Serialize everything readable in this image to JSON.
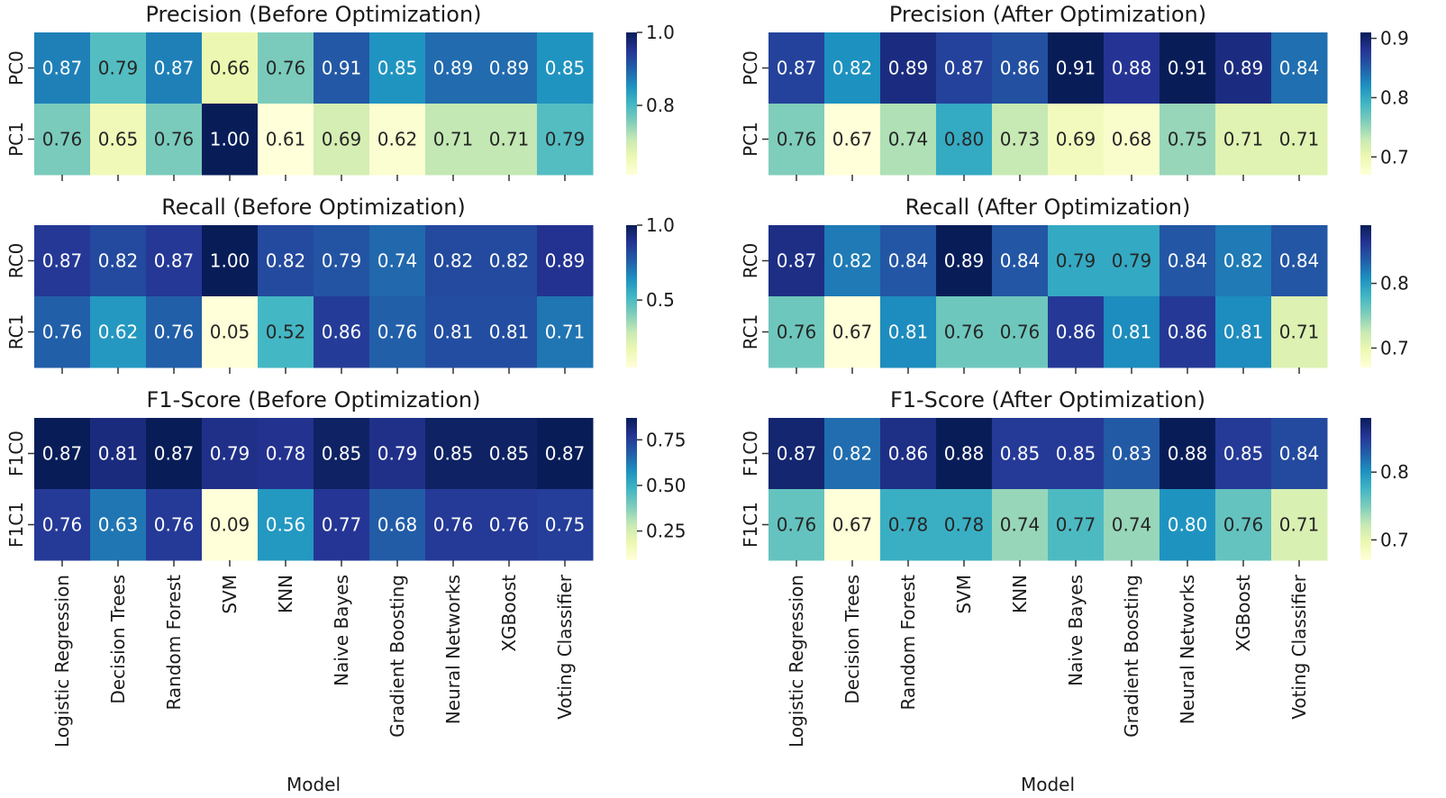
{
  "chart_data": [
    {
      "type": "heatmap",
      "title": "Precision (Before Optimization)",
      "rows": [
        "PC0",
        "PC1"
      ],
      "columns": [
        "Logistic Regression",
        "Decision Trees",
        "Random Forest",
        "SVM",
        "KNN",
        "Naive Bayes",
        "Gradient Boosting",
        "Neural Networks",
        "XGBoost",
        "Voting Classifier"
      ],
      "values": [
        [
          0.87,
          0.79,
          0.87,
          0.66,
          0.76,
          0.91,
          0.85,
          0.89,
          0.89,
          0.85
        ],
        [
          0.76,
          0.65,
          0.76,
          1.0,
          0.61,
          0.69,
          0.62,
          0.71,
          0.71,
          0.79
        ]
      ],
      "labels": [
        [
          "0.87",
          "0.79",
          "0.87",
          "0.66",
          "0.76",
          "0.91",
          "0.85",
          "0.89",
          "0.89",
          "0.85"
        ],
        [
          "0.76",
          "0.65",
          "0.76",
          "1.00",
          "0.61",
          "0.69",
          "0.62",
          "0.71",
          "0.71",
          "0.79"
        ]
      ],
      "vmin": 0.61,
      "vmax": 1.0,
      "colorbar_ticks": [
        0.8,
        1.0
      ],
      "colorbar_tick_labels": [
        "0.8",
        "1.0"
      ],
      "colormap": "YlGnBu",
      "xlabel": "",
      "show_xticklabels": false
    },
    {
      "type": "heatmap",
      "title": "Precision (After Optimization)",
      "rows": [
        "PC0",
        "PC1"
      ],
      "columns": [
        "Logistic Regression",
        "Decision Trees",
        "Random Forest",
        "SVM",
        "KNN",
        "Naive Bayes",
        "Gradient Boosting",
        "Neural Networks",
        "XGBoost",
        "Voting Classifier"
      ],
      "values": [
        [
          0.87,
          0.82,
          0.89,
          0.87,
          0.86,
          0.91,
          0.88,
          0.91,
          0.89,
          0.84
        ],
        [
          0.76,
          0.67,
          0.74,
          0.8,
          0.73,
          0.69,
          0.68,
          0.75,
          0.71,
          0.71
        ]
      ],
      "labels": [
        [
          "0.87",
          "0.82",
          "0.89",
          "0.87",
          "0.86",
          "0.91",
          "0.88",
          "0.91",
          "0.89",
          "0.84"
        ],
        [
          "0.76",
          "0.67",
          "0.74",
          "0.80",
          "0.73",
          "0.69",
          "0.68",
          "0.75",
          "0.71",
          "0.71"
        ]
      ],
      "vmin": 0.67,
      "vmax": 0.91,
      "colorbar_ticks": [
        0.7,
        0.8,
        0.9
      ],
      "colorbar_tick_labels": [
        "0.7",
        "0.8",
        "0.9"
      ],
      "colormap": "YlGnBu",
      "xlabel": "",
      "show_xticklabels": false
    },
    {
      "type": "heatmap",
      "title": "Recall (Before Optimization)",
      "rows": [
        "RC0",
        "RC1"
      ],
      "columns": [
        "Logistic Regression",
        "Decision Trees",
        "Random Forest",
        "SVM",
        "KNN",
        "Naive Bayes",
        "Gradient Boosting",
        "Neural Networks",
        "XGBoost",
        "Voting Classifier"
      ],
      "values": [
        [
          0.87,
          0.82,
          0.87,
          1.0,
          0.82,
          0.79,
          0.74,
          0.82,
          0.82,
          0.89
        ],
        [
          0.76,
          0.62,
          0.76,
          0.05,
          0.52,
          0.86,
          0.76,
          0.81,
          0.81,
          0.71
        ]
      ],
      "labels": [
        [
          "0.87",
          "0.82",
          "0.87",
          "1.00",
          "0.82",
          "0.79",
          "0.74",
          "0.82",
          "0.82",
          "0.89"
        ],
        [
          "0.76",
          "0.62",
          "0.76",
          "0.05",
          "0.52",
          "0.86",
          "0.76",
          "0.81",
          "0.81",
          "0.71"
        ]
      ],
      "vmin": 0.05,
      "vmax": 1.0,
      "colorbar_ticks": [
        0.5,
        1.0
      ],
      "colorbar_tick_labels": [
        "0.5",
        "1.0"
      ],
      "colormap": "YlGnBu",
      "xlabel": "",
      "show_xticklabels": false
    },
    {
      "type": "heatmap",
      "title": "Recall (After Optimization)",
      "rows": [
        "RC0",
        "RC1"
      ],
      "columns": [
        "Logistic Regression",
        "Decision Trees",
        "Random Forest",
        "SVM",
        "KNN",
        "Naive Bayes",
        "Gradient Boosting",
        "Neural Networks",
        "XGBoost",
        "Voting Classifier"
      ],
      "values": [
        [
          0.87,
          0.82,
          0.84,
          0.89,
          0.84,
          0.79,
          0.79,
          0.84,
          0.82,
          0.84
        ],
        [
          0.76,
          0.67,
          0.81,
          0.76,
          0.76,
          0.86,
          0.81,
          0.86,
          0.81,
          0.71
        ]
      ],
      "labels": [
        [
          "0.87",
          "0.82",
          "0.84",
          "0.89",
          "0.84",
          "0.79",
          "0.79",
          "0.84",
          "0.82",
          "0.84"
        ],
        [
          "0.76",
          "0.67",
          "0.81",
          "0.76",
          "0.76",
          "0.86",
          "0.81",
          "0.86",
          "0.81",
          "0.71"
        ]
      ],
      "vmin": 0.67,
      "vmax": 0.89,
      "colorbar_ticks": [
        0.7,
        0.8
      ],
      "colorbar_tick_labels": [
        "0.7",
        "0.8"
      ],
      "colormap": "YlGnBu",
      "xlabel": "",
      "show_xticklabels": false
    },
    {
      "type": "heatmap",
      "title": "F1-Score (Before Optimization)",
      "rows": [
        "F1C0",
        "F1C1"
      ],
      "columns": [
        "Logistic Regression",
        "Decision Trees",
        "Random Forest",
        "SVM",
        "KNN",
        "Naive Bayes",
        "Gradient Boosting",
        "Neural Networks",
        "XGBoost",
        "Voting Classifier"
      ],
      "values": [
        [
          0.87,
          0.81,
          0.87,
          0.79,
          0.78,
          0.85,
          0.79,
          0.85,
          0.85,
          0.87
        ],
        [
          0.76,
          0.63,
          0.76,
          0.09,
          0.56,
          0.77,
          0.68,
          0.76,
          0.76,
          0.75
        ]
      ],
      "labels": [
        [
          "0.87",
          "0.81",
          "0.87",
          "0.79",
          "0.78",
          "0.85",
          "0.79",
          "0.85",
          "0.85",
          "0.87"
        ],
        [
          "0.76",
          "0.63",
          "0.76",
          "0.09",
          "0.56",
          "0.77",
          "0.68",
          "0.76",
          "0.76",
          "0.75"
        ]
      ],
      "vmin": 0.09,
      "vmax": 0.87,
      "colorbar_ticks": [
        0.25,
        0.5,
        0.75
      ],
      "colorbar_tick_labels": [
        "0.25",
        "0.50",
        "0.75"
      ],
      "colormap": "YlGnBu",
      "xlabel": "Model",
      "show_xticklabels": true
    },
    {
      "type": "heatmap",
      "title": "F1-Score (After Optimization)",
      "rows": [
        "F1C0",
        "F1C1"
      ],
      "columns": [
        "Logistic Regression",
        "Decision Trees",
        "Random Forest",
        "SVM",
        "KNN",
        "Naive Bayes",
        "Gradient Boosting",
        "Neural Networks",
        "XGBoost",
        "Voting Classifier"
      ],
      "values": [
        [
          0.87,
          0.82,
          0.86,
          0.88,
          0.85,
          0.85,
          0.83,
          0.88,
          0.85,
          0.84
        ],
        [
          0.76,
          0.67,
          0.78,
          0.78,
          0.74,
          0.77,
          0.74,
          0.8,
          0.76,
          0.71
        ]
      ],
      "labels": [
        [
          "0.87",
          "0.82",
          "0.86",
          "0.88",
          "0.85",
          "0.85",
          "0.83",
          "0.88",
          "0.85",
          "0.84"
        ],
        [
          "0.76",
          "0.67",
          "0.78",
          "0.78",
          "0.74",
          "0.77",
          "0.74",
          "0.80",
          "0.76",
          "0.71"
        ]
      ],
      "vmin": 0.67,
      "vmax": 0.88,
      "colorbar_ticks": [
        0.7,
        0.8
      ],
      "colorbar_tick_labels": [
        "0.7",
        "0.8"
      ],
      "colormap": "YlGnBu",
      "xlabel": "Model",
      "show_xticklabels": true
    }
  ]
}
